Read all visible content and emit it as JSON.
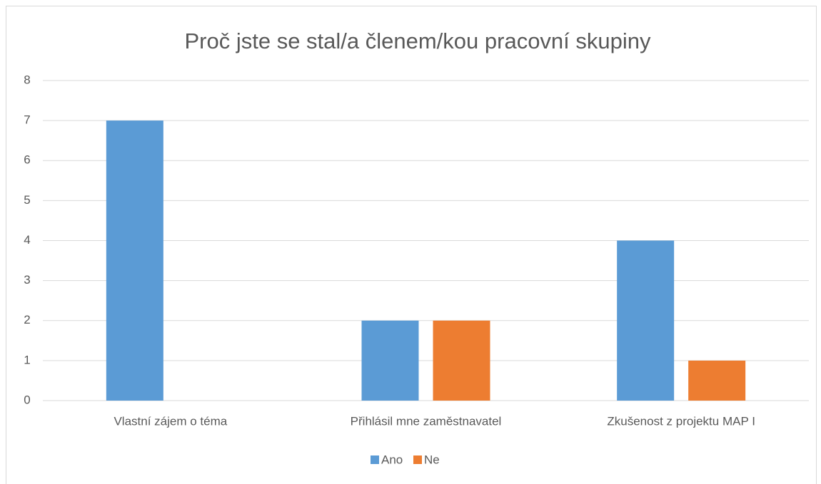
{
  "chart_data": {
    "type": "bar",
    "title": "Proč jste se stal/a členem/kou pracovní skupiny",
    "categories": [
      "Vlastní zájem o téma",
      "Přihlásil mne zaměstnavatel",
      "Zkušenost z projektu MAP I"
    ],
    "series": [
      {
        "name": "Ano",
        "color": "#5b9bd5",
        "values": [
          7,
          2,
          4
        ]
      },
      {
        "name": "Ne",
        "color": "#ed7d31",
        "values": [
          0,
          2,
          1
        ]
      }
    ],
    "ylim": [
      0,
      8
    ],
    "yticks": [
      0,
      1,
      2,
      3,
      4,
      5,
      6,
      7,
      8
    ],
    "grid": true,
    "legend": "bottom"
  }
}
